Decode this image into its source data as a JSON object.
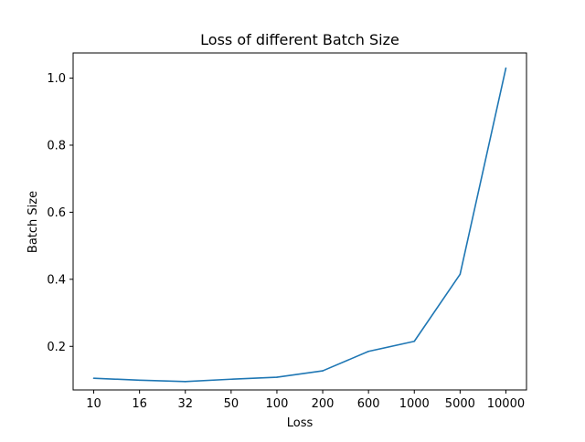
{
  "chart_data": {
    "type": "line",
    "title": "Loss of different Batch Size",
    "xlabel": "Loss",
    "ylabel": "Batch Size",
    "categories": [
      "10",
      "16",
      "32",
      "50",
      "100",
      "200",
      "600",
      "1000",
      "5000",
      "10000"
    ],
    "series": [
      {
        "color": "#1f77b4",
        "values": [
          0.105,
          0.099,
          0.095,
          0.102,
          0.108,
          0.127,
          0.185,
          0.215,
          0.415,
          1.03
        ]
      }
    ],
    "ylim": [
      0.07,
      1.075
    ],
    "yticks": [
      0.2,
      0.4,
      0.6,
      0.8,
      1.0
    ],
    "ytick_labels": [
      "0.2",
      "0.4",
      "0.6",
      "0.8",
      "1.0"
    ],
    "grid": false,
    "legend": "none"
  }
}
